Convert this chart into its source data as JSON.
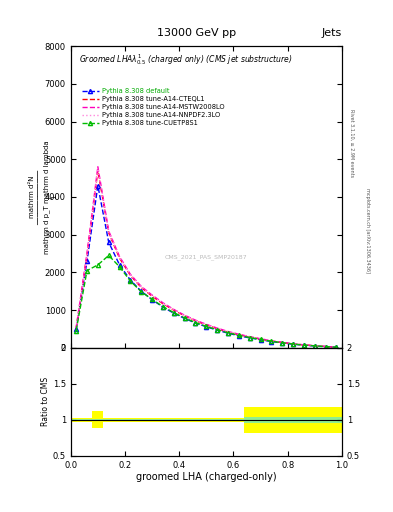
{
  "title": "13000 GeV pp",
  "title_right": "Jets",
  "plot_title": "Groomed LHAλ  (charged only) (CMS jet substructure)",
  "xlabel": "groomed LHA (charged-only)",
  "watermark": "CMS_2021_PAS_SMP20187",
  "xbins": [
    0.0,
    0.04,
    0.08,
    0.12,
    0.16,
    0.2,
    0.24,
    0.28,
    0.32,
    0.36,
    0.4,
    0.44,
    0.48,
    0.52,
    0.56,
    0.6,
    0.64,
    0.68,
    0.72,
    0.76,
    0.8,
    0.84,
    0.88,
    0.92,
    0.96,
    1.0
  ],
  "ylim_main": [
    0,
    8000
  ],
  "ylim_ratio": [
    0.5,
    2.0
  ],
  "yticks_main": [
    0,
    1000,
    2000,
    3000,
    4000,
    5000,
    6000,
    7000,
    8000
  ],
  "yticks_ratio": [
    0.5,
    1.0,
    1.5,
    2.0
  ],
  "series": [
    {
      "label": "Pythia 8.308 default",
      "color": "#0000ff",
      "linestyle": "--",
      "marker": "^",
      "markersize": 3,
      "values": [
        500,
        2300,
        4300,
        2800,
        2200,
        1800,
        1500,
        1280,
        1080,
        920,
        780,
        660,
        560,
        470,
        390,
        320,
        265,
        215,
        168,
        130,
        97,
        70,
        50,
        32,
        18
      ]
    },
    {
      "label": "Pythia 8.308 tune-A14-CTEQL1",
      "color": "#ff0000",
      "linestyle": "--",
      "marker": null,
      "markersize": 0,
      "values": [
        520,
        2450,
        4700,
        3050,
        2380,
        1920,
        1600,
        1370,
        1170,
        1000,
        850,
        720,
        610,
        510,
        420,
        350,
        288,
        233,
        182,
        143,
        106,
        77,
        56,
        36,
        21
      ]
    },
    {
      "label": "Pythia 8.308 tune-A14-MSTW2008LO",
      "color": "#ff00bb",
      "linestyle": "--",
      "marker": null,
      "markersize": 0,
      "values": [
        540,
        2500,
        4800,
        3100,
        2420,
        1950,
        1630,
        1400,
        1195,
        1020,
        865,
        735,
        625,
        525,
        435,
        362,
        298,
        242,
        189,
        149,
        111,
        81,
        59,
        38,
        22
      ]
    },
    {
      "label": "Pythia 8.308 tune-A14-NNPDF2.3LO",
      "color": "#ff88dd",
      "linestyle": ":",
      "marker": null,
      "markersize": 0,
      "values": [
        530,
        2470,
        4750,
        3070,
        2400,
        1935,
        1615,
        1385,
        1182,
        1010,
        857,
        727,
        617,
        518,
        428,
        356,
        293,
        238,
        186,
        146,
        109,
        79,
        57,
        37,
        21
      ]
    },
    {
      "label": "Pythia 8.308 tune-CUETP8S1",
      "color": "#00bb00",
      "linestyle": "--",
      "marker": "^",
      "markersize": 3,
      "values": [
        460,
        2050,
        2200,
        2450,
        2150,
        1770,
        1490,
        1285,
        1095,
        935,
        793,
        672,
        570,
        480,
        400,
        333,
        275,
        224,
        175,
        138,
        103,
        74,
        54,
        34,
        19
      ]
    }
  ],
  "ratio_green_band_x": [
    0.0,
    0.04,
    0.08,
    0.12,
    0.16,
    0.2,
    0.24,
    0.28,
    0.32,
    0.36,
    0.4,
    0.44,
    0.48,
    0.52,
    0.56,
    0.6,
    0.64,
    0.68,
    0.72,
    0.76,
    0.8,
    0.84,
    0.88,
    0.92,
    0.96,
    1.0
  ],
  "ratio_green_lower": [
    0.985,
    0.985,
    0.985,
    0.985,
    0.985,
    0.985,
    0.985,
    0.985,
    0.985,
    0.985,
    0.985,
    0.985,
    0.985,
    0.985,
    0.985,
    0.985,
    0.96,
    0.96,
    0.96,
    0.96,
    0.96,
    0.96,
    0.96,
    0.96,
    0.96,
    0.96
  ],
  "ratio_green_upper": [
    1.015,
    1.015,
    1.015,
    1.015,
    1.015,
    1.015,
    1.015,
    1.015,
    1.015,
    1.015,
    1.015,
    1.015,
    1.015,
    1.015,
    1.015,
    1.015,
    1.04,
    1.04,
    1.04,
    1.04,
    1.04,
    1.04,
    1.04,
    1.04,
    1.04,
    1.04
  ],
  "ratio_yellow_lower": [
    0.975,
    0.975,
    0.88,
    0.975,
    0.975,
    0.975,
    0.975,
    0.975,
    0.975,
    0.975,
    0.975,
    0.975,
    0.975,
    0.975,
    0.975,
    0.975,
    0.82,
    0.82,
    0.82,
    0.82,
    0.82,
    0.82,
    0.82,
    0.82,
    0.82,
    0.82
  ],
  "ratio_yellow_upper": [
    1.025,
    1.025,
    1.12,
    1.025,
    1.025,
    1.025,
    1.025,
    1.025,
    1.025,
    1.025,
    1.025,
    1.025,
    1.025,
    1.025,
    1.025,
    1.025,
    1.18,
    1.18,
    1.18,
    1.18,
    1.18,
    1.18,
    1.18,
    1.18,
    1.18,
    1.18
  ],
  "background_color": "#ffffff",
  "right_label1": "Rivet 3.1.10, ≥ 2.9M events",
  "right_label2": "mcplots.cern.ch [arXiv:1306.3436]",
  "ylabel_lines": [
    "mathrm d²N",
    "mathrm d p₁ mathrm d lambda",
    "1"
  ]
}
